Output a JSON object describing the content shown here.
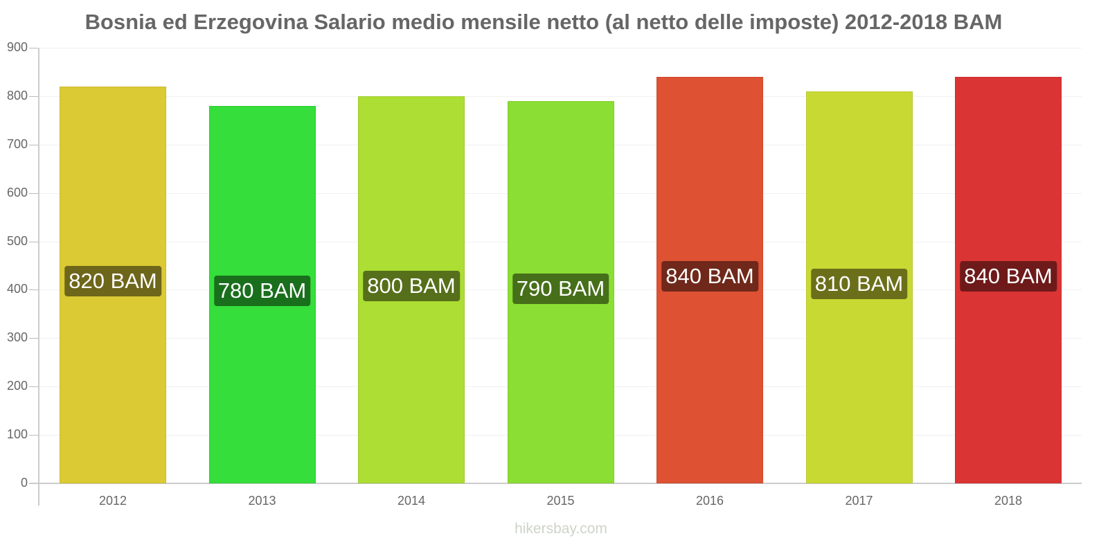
{
  "chart_data": {
    "type": "bar",
    "title": "Bosnia ed Erzegovina Salario medio mensile netto (al netto delle imposte) 2012-2018 BAM",
    "xlabel": "",
    "ylabel": "",
    "categories": [
      "2012",
      "2013",
      "2014",
      "2015",
      "2016",
      "2017",
      "2018"
    ],
    "values": [
      820,
      780,
      800,
      790,
      840,
      810,
      840
    ],
    "labels": [
      "820 BAM",
      "780 BAM",
      "800 BAM",
      "790 BAM",
      "840 BAM",
      "810 BAM",
      "840 BAM"
    ],
    "bar_colors": [
      "#dbca33",
      "#35de3a",
      "#acde33",
      "#8bde33",
      "#de5133",
      "#c9d933",
      "#db3434"
    ],
    "label_colors": [
      "#6e661a",
      "#1a6f1d",
      "#566f1a",
      "#466f1a",
      "#6f281a",
      "#6b6f1a",
      "#6e1a1a"
    ],
    "unit": "BAM",
    "ylim": [
      0,
      900
    ],
    "yticks": [
      0,
      100,
      200,
      300,
      400,
      500,
      600,
      700,
      800,
      900
    ],
    "grid": true,
    "legend": "none"
  },
  "watermark": "hikersbay.com"
}
